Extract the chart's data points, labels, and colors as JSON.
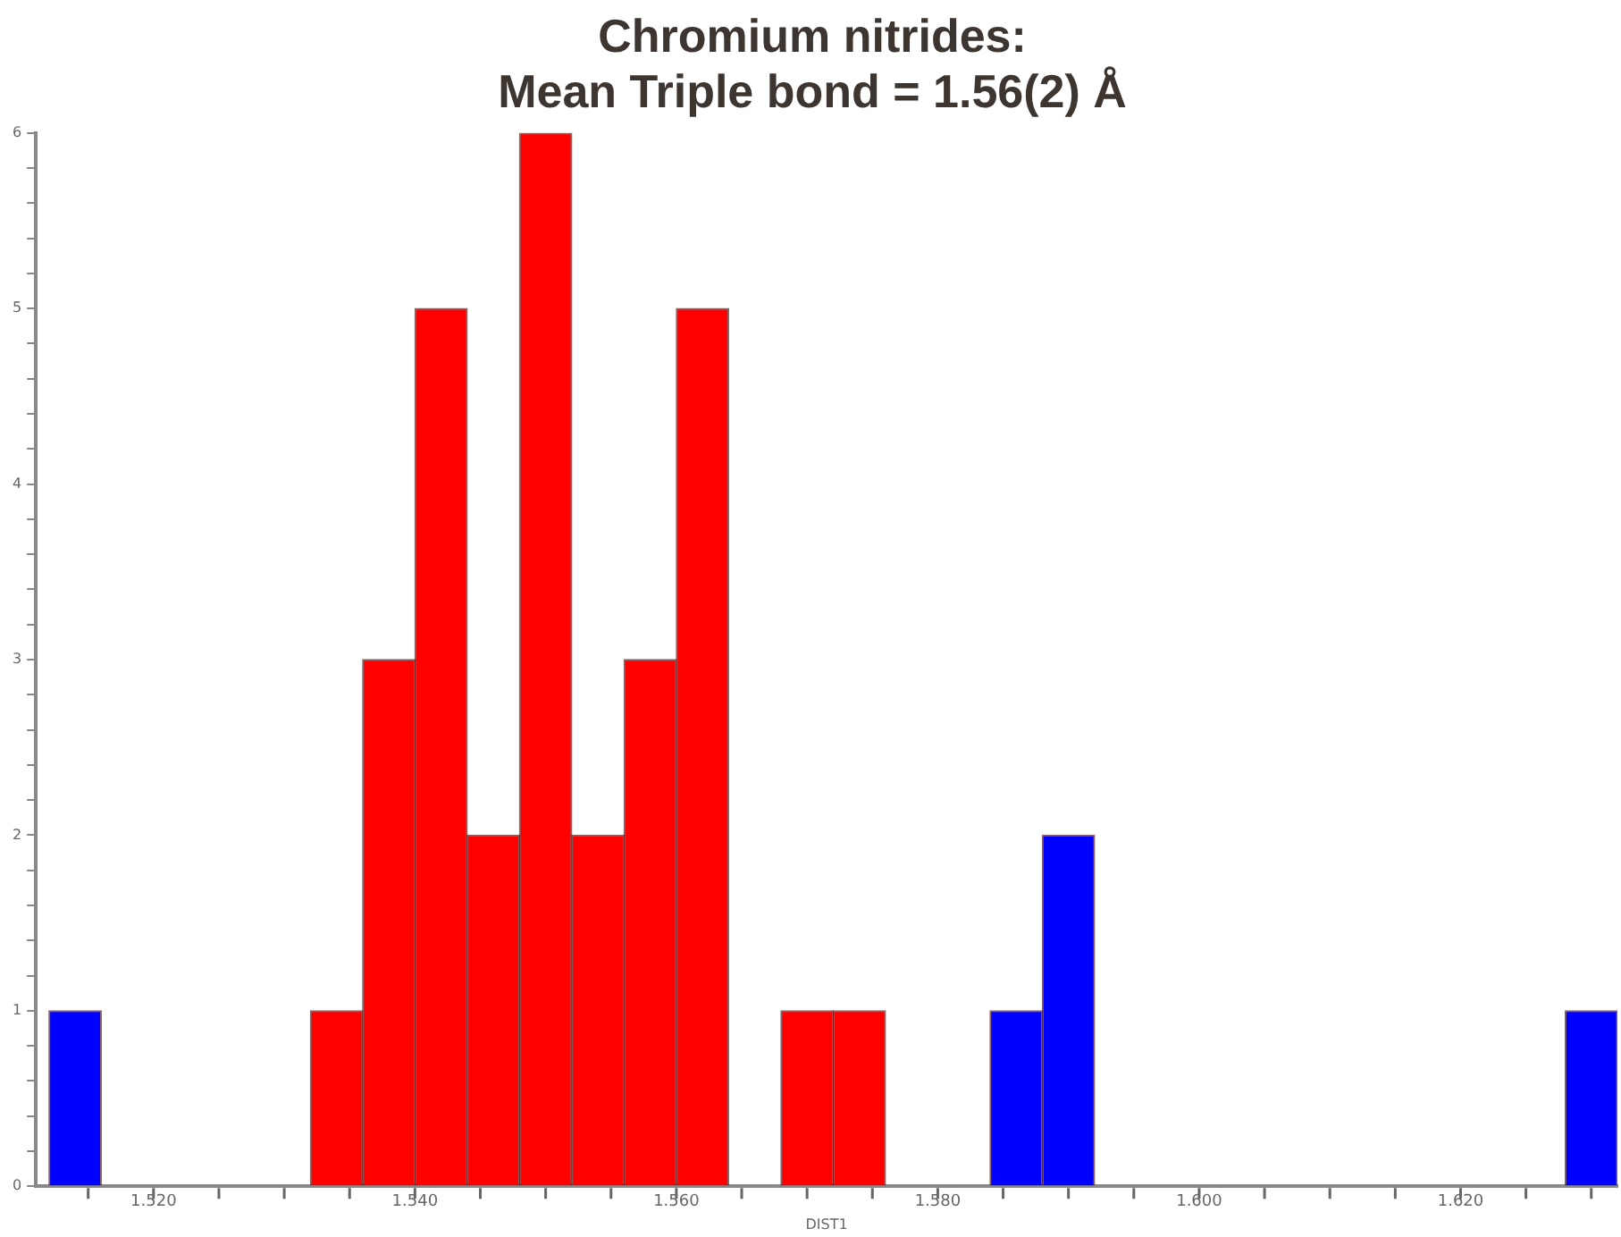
{
  "chart_data": {
    "type": "histogram",
    "title": "Chromium nitrides:",
    "subtitle": "Mean Triple bond = 1.56(2) Å",
    "xlabel": "DIST1",
    "bins": [
      1.512,
      1.516,
      1.52,
      1.524,
      1.528,
      1.532,
      1.536,
      1.54,
      1.544,
      1.548,
      1.552,
      1.556,
      1.56,
      1.564,
      1.568,
      1.572,
      1.576,
      1.58,
      1.584,
      1.588,
      1.592,
      1.596,
      1.6,
      1.604,
      1.608,
      1.612,
      1.616,
      1.62,
      1.624,
      1.628,
      1.632
    ],
    "values": [
      1,
      0,
      0,
      0,
      0,
      1,
      3,
      5,
      2,
      6,
      2,
      3,
      5,
      0,
      1,
      1,
      0,
      0,
      1,
      2,
      0,
      0,
      0,
      0,
      0,
      0,
      0,
      0,
      0,
      1
    ],
    "colors": [
      "#0000ff",
      "#0000ff",
      "#0000ff",
      "#0000ff",
      "#0000ff",
      "#ff0000",
      "#ff0000",
      "#ff0000",
      "#ff0000",
      "#ff0000",
      "#ff0000",
      "#ff0000",
      "#ff0000",
      "#ff0000",
      "#ff0000",
      "#ff0000",
      "#0000ff",
      "#0000ff",
      "#0000ff",
      "#0000ff",
      "#0000ff",
      "#0000ff",
      "#0000ff",
      "#0000ff",
      "#0000ff",
      "#0000ff",
      "#0000ff",
      "#0000ff",
      "#0000ff",
      "#0000ff"
    ],
    "xlim": [
      1.511,
      1.632
    ],
    "ylim": [
      0,
      6
    ],
    "xticks": [
      {
        "value": 1.515,
        "label": null
      },
      {
        "value": 1.52,
        "label": "1.520"
      },
      {
        "value": 1.525,
        "label": null
      },
      {
        "value": 1.53,
        "label": null
      },
      {
        "value": 1.535,
        "label": null
      },
      {
        "value": 1.54,
        "label": "1.540"
      },
      {
        "value": 1.545,
        "label": null
      },
      {
        "value": 1.55,
        "label": null
      },
      {
        "value": 1.555,
        "label": null
      },
      {
        "value": 1.56,
        "label": "1.560"
      },
      {
        "value": 1.565,
        "label": null
      },
      {
        "value": 1.57,
        "label": null
      },
      {
        "value": 1.575,
        "label": null
      },
      {
        "value": 1.58,
        "label": "1.580"
      },
      {
        "value": 1.585,
        "label": null
      },
      {
        "value": 1.59,
        "label": null
      },
      {
        "value": 1.595,
        "label": null
      },
      {
        "value": 1.6,
        "label": "1.600"
      },
      {
        "value": 1.605,
        "label": null
      },
      {
        "value": 1.61,
        "label": null
      },
      {
        "value": 1.615,
        "label": null
      },
      {
        "value": 1.62,
        "label": "1.620"
      },
      {
        "value": 1.625,
        "label": null
      },
      {
        "value": 1.63,
        "label": null
      }
    ],
    "yticks": [
      0,
      {
        "value": 0.2,
        "label": null
      },
      {
        "value": 0.4,
        "label": null
      },
      {
        "value": 0.6,
        "label": null
      },
      {
        "value": 0.8,
        "label": null
      },
      1,
      {
        "value": 1.2,
        "label": null
      },
      {
        "value": 1.4,
        "label": null
      },
      {
        "value": 1.6,
        "label": null
      },
      {
        "value": 1.8,
        "label": null
      },
      2,
      {
        "value": 2.2,
        "label": null
      },
      {
        "value": 2.4,
        "label": null
      },
      {
        "value": 2.6,
        "label": null
      },
      {
        "value": 2.8,
        "label": null
      },
      3,
      {
        "value": 3.2,
        "label": null
      },
      {
        "value": 3.4,
        "label": null
      },
      {
        "value": 3.6,
        "label": null
      },
      {
        "value": 3.8,
        "label": null
      },
      4,
      {
        "value": 4.2,
        "label": null
      },
      {
        "value": 4.4,
        "label": null
      },
      {
        "value": 4.6,
        "label": null
      },
      {
        "value": 4.8,
        "label": null
      },
      5,
      {
        "value": 5.2,
        "label": null
      },
      {
        "value": 5.4,
        "label": null
      },
      {
        "value": 5.6,
        "label": null
      },
      {
        "value": 5.8,
        "label": null
      },
      6
    ],
    "grid": false,
    "legend": false
  }
}
